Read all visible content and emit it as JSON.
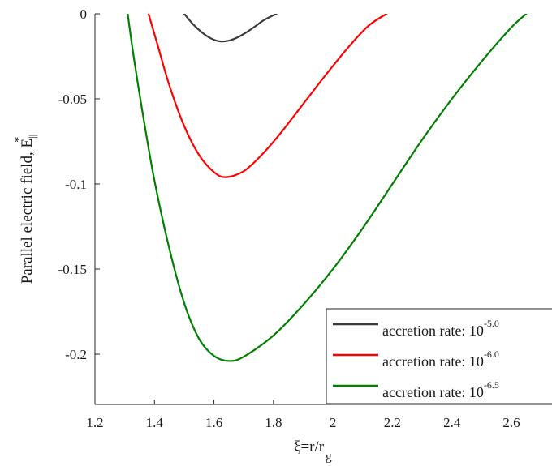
{
  "chart_data": {
    "type": "line",
    "xlabel": {
      "main": "ξ=r/r",
      "sub": "g"
    },
    "ylabel": {
      "main": "Parallel electric field, E",
      "sup": "*",
      "sub": "||"
    },
    "xlim": [
      1.2,
      2.8
    ],
    "ylim": [
      -0.23,
      0
    ],
    "x_ticks": [
      "1.2",
      "1.4",
      "1.6",
      "1.8",
      "2",
      "2.2",
      "2.4",
      "2.6"
    ],
    "y_ticks": [
      "0",
      "-0.05",
      "-0.1",
      "-0.15",
      "-0.2"
    ],
    "grid": false,
    "legend_position": "bottom-right",
    "series": [
      {
        "name": "accretion rate: 10",
        "exponent": "-5.0",
        "color": "#3a3a3a",
        "x": [
          1.5,
          1.53,
          1.56,
          1.59,
          1.62,
          1.65,
          1.68,
          1.71,
          1.74,
          1.77,
          1.81
        ],
        "y": [
          0.0,
          -0.0062,
          -0.011,
          -0.0145,
          -0.0162,
          -0.0158,
          -0.0138,
          -0.0108,
          -0.0072,
          -0.0035,
          0.0
        ]
      },
      {
        "name": "accretion rate: 10",
        "exponent": "-6.0",
        "color": "#ff0000",
        "x": [
          1.38,
          1.41,
          1.45,
          1.5,
          1.55,
          1.6,
          1.64,
          1.7,
          1.76,
          1.82,
          1.9,
          1.98,
          2.06,
          2.12,
          2.18
        ],
        "y": [
          0.0,
          -0.018,
          -0.042,
          -0.066,
          -0.083,
          -0.093,
          -0.096,
          -0.0925,
          -0.083,
          -0.071,
          -0.053,
          -0.035,
          -0.018,
          -0.007,
          0.0
        ]
      },
      {
        "name": "accretion rate: 10",
        "exponent": "-6.5",
        "color": "#008000",
        "x": [
          1.31,
          1.33,
          1.36,
          1.4,
          1.45,
          1.5,
          1.55,
          1.6,
          1.65,
          1.7,
          1.8,
          1.9,
          2.0,
          2.1,
          2.2,
          2.3,
          2.4,
          2.5,
          2.6,
          2.65
        ],
        "y": [
          0.0,
          -0.025,
          -0.058,
          -0.098,
          -0.138,
          -0.17,
          -0.191,
          -0.201,
          -0.204,
          -0.2015,
          -0.189,
          -0.171,
          -0.15,
          -0.126,
          -0.1,
          -0.074,
          -0.05,
          -0.028,
          -0.008,
          0.0
        ]
      }
    ]
  }
}
